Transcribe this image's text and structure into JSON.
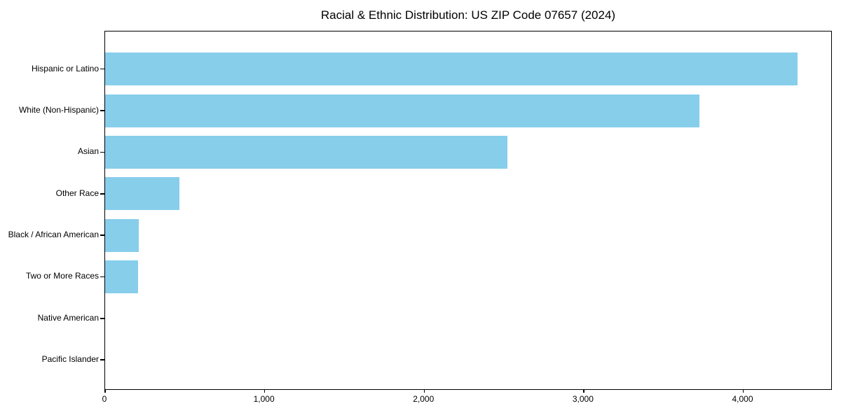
{
  "chart_data": {
    "type": "bar",
    "orientation": "horizontal",
    "title": "Racial & Ethnic Distribution: US ZIP Code 07657 (2024)",
    "categories": [
      "Hispanic or Latino",
      "White (Non-Hispanic)",
      "Asian",
      "Other Race",
      "Black / African American",
      "Two or More Races",
      "Native American",
      "Pacific Islander"
    ],
    "values": [
      4340,
      3725,
      2520,
      465,
      210,
      205,
      0,
      0
    ],
    "xlabel": "",
    "ylabel": "",
    "xlim": [
      0,
      4560
    ],
    "x_ticks": [
      0,
      1000,
      2000,
      3000,
      4000
    ],
    "x_tick_labels": [
      "0",
      "1,000",
      "2,000",
      "3,000",
      "4,000"
    ],
    "bar_color": "#87CEEB",
    "frame_color": "#000000",
    "grid": false,
    "legend": null
  }
}
